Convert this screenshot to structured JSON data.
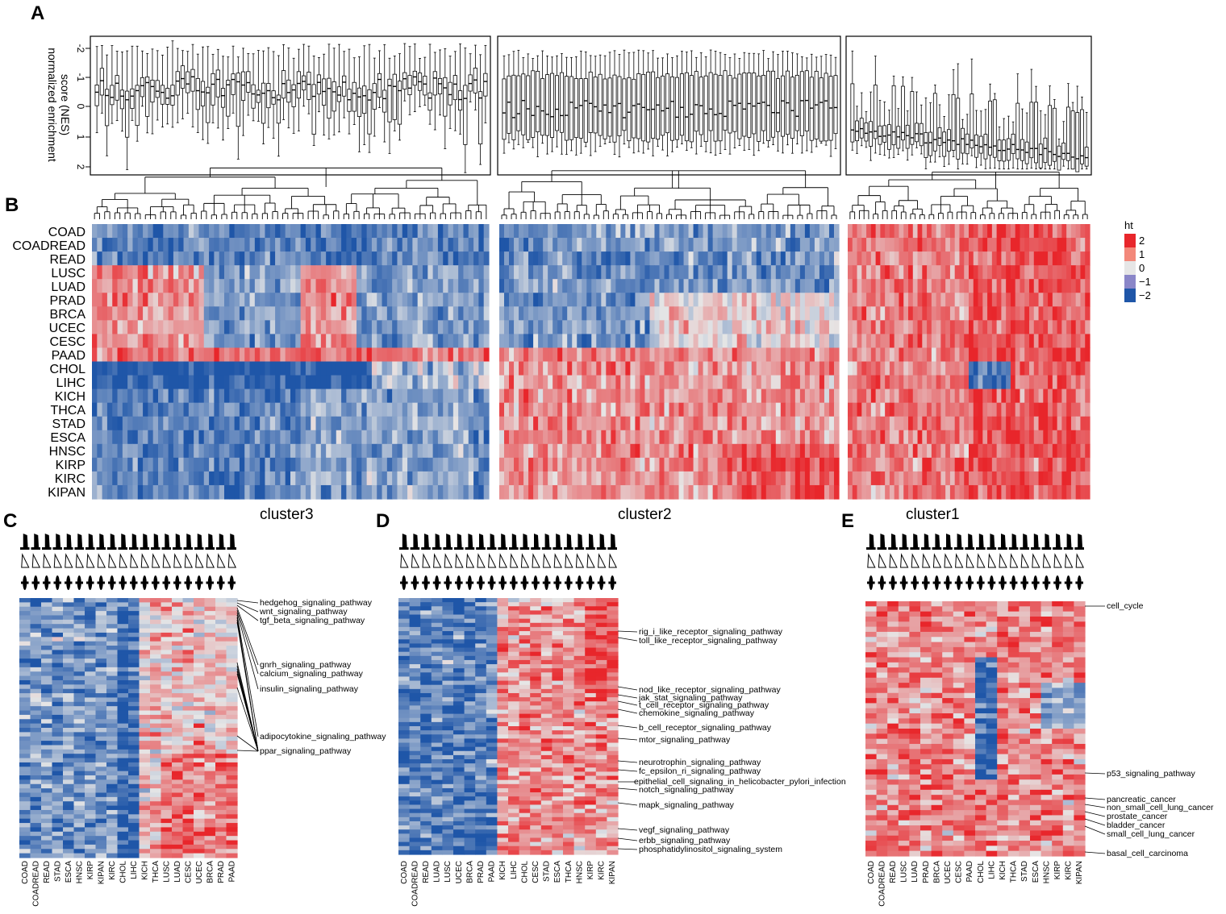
{
  "panels": {
    "a": "A",
    "b": "B",
    "c": "C",
    "d": "D",
    "e": "E"
  },
  "boxplot": {
    "ylabel_line1": "normalized enrichment",
    "ylabel_line2": "score (NES)",
    "yticks": [
      "-2",
      "-1",
      "0",
      "1",
      "2"
    ]
  },
  "heatmap": {
    "row_labels": [
      "COAD",
      "COADREAD",
      "READ",
      "LUSC",
      "LUAD",
      "PRAD",
      "BRCA",
      "UCEC",
      "CESC",
      "PAAD",
      "CHOL",
      "LIHC",
      "KICH",
      "THCA",
      "STAD",
      "ESCA",
      "HNSC",
      "KIRP",
      "KIRC",
      "KIPAN"
    ],
    "legend": {
      "title": "ht",
      "entries": [
        {
          "label": "2",
          "color": "#e8262b"
        },
        {
          "label": "1",
          "color": "#f3887a"
        },
        {
          "label": "0",
          "color": "#e6e6e6"
        },
        {
          "label": "−1",
          "color": "#8a86c8"
        },
        {
          "label": "−2",
          "color": "#1f56a8"
        }
      ]
    },
    "colors": {
      "red": "#e8262b",
      "blue": "#1f56a8",
      "mid": "#e6e6e6"
    }
  },
  "clusters": {
    "c": {
      "title": "cluster3",
      "columns": [
        "COAD",
        "COADREAD",
        "READ",
        "STAD",
        "ESCA",
        "HNSC",
        "KIRP",
        "KIPAN",
        "KIRC",
        "CHOL",
        "LIHC",
        "KICH",
        "THCA",
        "LUSC",
        "LUAD",
        "CESC",
        "UCEC",
        "BRCA",
        "PRAD",
        "PAAD"
      ],
      "pathways": [
        "hedgehog_signaling_pathway",
        "wnt_signaling_pathway",
        "tgf_beta_signaling_pathway",
        "gnrh_signaling_pathway",
        "calcium_signaling_pathway",
        "insulin_signaling_pathway",
        "adipocytokine_signaling_pathway",
        "ppar_signaling_pathway"
      ]
    },
    "d": {
      "title": "cluster2",
      "columns": [
        "COAD",
        "COADREAD",
        "READ",
        "LUAD",
        "LUSC",
        "UCEC",
        "BRCA",
        "PRAD",
        "PAAD",
        "KICH",
        "LIHC",
        "CHOL",
        "CESC",
        "STAD",
        "ESCA",
        "THCA",
        "HNSC",
        "KIRP",
        "KIRC",
        "KIPAN"
      ],
      "pathways": [
        "rig_i_like_receptor_signaling_pathway",
        "toll_like_receptor_signaling_pathway",
        "nod_like_receptor_signaling_pathway",
        "jak_stat_signaling_pathway",
        "t_cell_receptor_signaling_pathway",
        "chemokine_signaling_pathway",
        "b_cell_receptor_signaling_pathway",
        "mtor_signaling_pathway",
        "neurotrophin_signaling_pathway",
        "fc_epsilon_ri_signaling_pathway",
        "epithelial_cell_signaling_in_helicobacter_pylori_infection",
        "notch_signaling_pathway",
        "mapk_signaling_pathway",
        "vegf_signaling_pathway",
        "erbb_signaling_pathway",
        "phosphatidylinositol_signaling_system"
      ]
    },
    "e": {
      "title": "cluster1",
      "columns": [
        "COAD",
        "COADREAD",
        "READ",
        "LUSC",
        "LUAD",
        "PRAD",
        "BRCA",
        "UCEC",
        "CESC",
        "PAAD",
        "CHOL",
        "LIHC",
        "KICH",
        "THCA",
        "STAD",
        "ESCA",
        "HNSC",
        "KIRP",
        "KIRC",
        "KIPAN"
      ],
      "pathways": [
        "cell_cycle",
        "p53_signaling_pathway",
        "pancreatic_cancer",
        "non_small_cell_lung_cancer",
        "prostate_cancer",
        "bladder_cancer",
        "small_cell_lung_cancer",
        "basal_cell_carcinoma"
      ]
    }
  }
}
